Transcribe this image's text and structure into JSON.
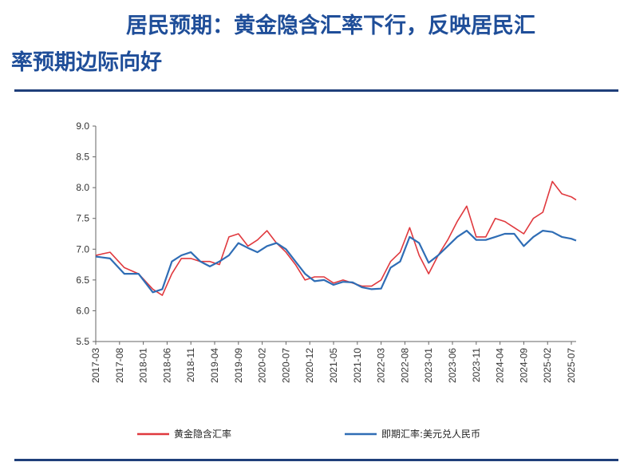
{
  "header": {
    "title_line1": "居民预期：黄金隐含汇率下行，反映居民汇",
    "title_line2": "率预期边际向好"
  },
  "colors": {
    "series_gold": "#e0393e",
    "series_spot": "#2f6db5",
    "title": "#1f4e99",
    "rule": "#1f3f7a"
  },
  "chart_data": {
    "type": "line",
    "title": "",
    "xlabel": "",
    "ylabel": "",
    "ylim": [
      5.5,
      9.0
    ],
    "yticks": [
      "9.0",
      "8.5",
      "8.0",
      "7.5",
      "7.0",
      "6.5",
      "6.0",
      "5.5"
    ],
    "xticks": [
      "2017-03",
      "2017-08",
      "2018-01",
      "2018-06",
      "2018-11",
      "2019-04",
      "2019-09",
      "2020-02",
      "2020-07",
      "2020-12",
      "2021-05",
      "2021-10",
      "2022-03",
      "2022-08",
      "2023-01",
      "2023-06",
      "2023-11",
      "2024-04",
      "2024-09",
      "2025-02",
      "2025-07"
    ],
    "x_start": "2017-03",
    "x_end": "2025-08",
    "legend_position": "bottom",
    "grid": false,
    "series": [
      {
        "name": "黄金隐含汇率",
        "color": "#e0393e",
        "x": [
          "2017-03",
          "2017-06",
          "2017-09",
          "2017-12",
          "2018-03",
          "2018-05",
          "2018-07",
          "2018-09",
          "2018-11",
          "2019-01",
          "2019-03",
          "2019-05",
          "2019-07",
          "2019-09",
          "2019-11",
          "2020-01",
          "2020-03",
          "2020-05",
          "2020-07",
          "2020-09",
          "2020-11",
          "2021-01",
          "2021-03",
          "2021-05",
          "2021-07",
          "2021-09",
          "2021-11",
          "2022-01",
          "2022-03",
          "2022-05",
          "2022-07",
          "2022-09",
          "2022-11",
          "2023-01",
          "2023-03",
          "2023-05",
          "2023-07",
          "2023-09",
          "2023-11",
          "2024-01",
          "2024-03",
          "2024-05",
          "2024-07",
          "2024-09",
          "2024-11",
          "2025-01",
          "2025-03",
          "2025-05",
          "2025-07",
          "2025-08"
        ],
        "values": [
          6.9,
          6.95,
          6.7,
          6.6,
          6.35,
          6.25,
          6.6,
          6.85,
          6.85,
          6.8,
          6.8,
          6.75,
          7.2,
          7.25,
          7.05,
          7.15,
          7.3,
          7.1,
          6.95,
          6.75,
          6.5,
          6.55,
          6.55,
          6.45,
          6.5,
          6.45,
          6.4,
          6.4,
          6.5,
          6.8,
          6.95,
          7.35,
          6.9,
          6.6,
          6.9,
          7.15,
          7.45,
          7.7,
          7.2,
          7.2,
          7.5,
          7.45,
          7.35,
          7.25,
          7.5,
          7.6,
          8.1,
          7.9,
          7.85,
          7.8
        ]
      },
      {
        "name": "即期汇率:美元兑人民币",
        "color": "#2f6db5",
        "x": [
          "2017-03",
          "2017-06",
          "2017-09",
          "2017-12",
          "2018-03",
          "2018-05",
          "2018-07",
          "2018-09",
          "2018-11",
          "2019-01",
          "2019-03",
          "2019-05",
          "2019-07",
          "2019-09",
          "2019-11",
          "2020-01",
          "2020-03",
          "2020-05",
          "2020-07",
          "2020-09",
          "2020-11",
          "2021-01",
          "2021-03",
          "2021-05",
          "2021-07",
          "2021-09",
          "2021-11",
          "2022-01",
          "2022-03",
          "2022-05",
          "2022-07",
          "2022-09",
          "2022-11",
          "2023-01",
          "2023-03",
          "2023-05",
          "2023-07",
          "2023-09",
          "2023-11",
          "2024-01",
          "2024-03",
          "2024-05",
          "2024-07",
          "2024-09",
          "2024-11",
          "2025-01",
          "2025-03",
          "2025-05",
          "2025-07",
          "2025-08"
        ],
        "values": [
          6.88,
          6.85,
          6.6,
          6.6,
          6.3,
          6.35,
          6.8,
          6.9,
          6.95,
          6.8,
          6.72,
          6.8,
          6.9,
          7.1,
          7.02,
          6.95,
          7.05,
          7.1,
          7.0,
          6.8,
          6.6,
          6.48,
          6.5,
          6.42,
          6.47,
          6.46,
          6.38,
          6.35,
          6.36,
          6.7,
          6.8,
          7.2,
          7.1,
          6.78,
          6.9,
          7.05,
          7.2,
          7.3,
          7.15,
          7.15,
          7.2,
          7.25,
          7.25,
          7.05,
          7.2,
          7.3,
          7.28,
          7.2,
          7.17,
          7.14
        ]
      }
    ]
  }
}
